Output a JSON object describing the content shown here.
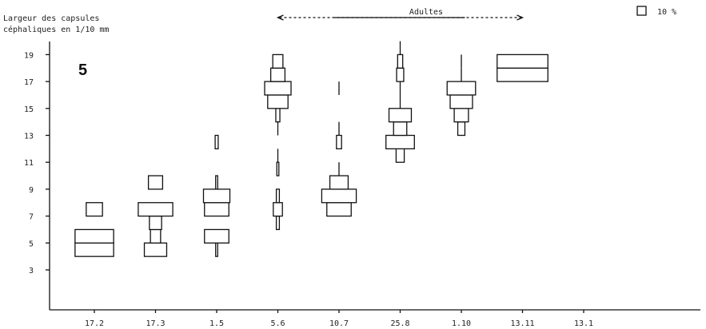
{
  "chart_data": {
    "type": "kite-diagram",
    "panel_label": "5",
    "ylabel_line1": "Largeur des capsules",
    "ylabel_line2": "céphaliques en 1/10 mm",
    "y_ticks": [
      3,
      5,
      7,
      9,
      11,
      13,
      15,
      17,
      19
    ],
    "ylim": [
      1,
      20.5
    ],
    "x_ticks": [
      "17.2",
      "17.3",
      "1.5",
      "5.6",
      "10.7",
      "25.8",
      "1.10",
      "13.11",
      "13.1"
    ],
    "range_annotation": {
      "label": "Adultes",
      "from": "5.6",
      "to": "13.11"
    },
    "legend": {
      "label": "10 %"
    },
    "samples": [
      {
        "date": "17.2",
        "bars": [
          {
            "size": 4.5,
            "percent": 38
          },
          {
            "size": 5.5,
            "percent": 38
          },
          {
            "size": 7.5,
            "percent": 16
          }
        ]
      },
      {
        "date": "17.3",
        "bars": [
          {
            "size": 4.5,
            "percent": 22
          },
          {
            "size": 5.5,
            "percent": 10
          },
          {
            "size": 6.5,
            "percent": 12
          },
          {
            "size": 7.5,
            "percent": 34
          },
          {
            "size": 9.5,
            "percent": 14
          }
        ]
      },
      {
        "date": "1.5",
        "bars": [
          {
            "size": 4.5,
            "percent": 2
          },
          {
            "size": 5.5,
            "percent": 24
          },
          {
            "size": 7.5,
            "percent": 24
          },
          {
            "size": 8.5,
            "percent": 26
          },
          {
            "size": 9.5,
            "percent": 2
          },
          {
            "size": 12.5,
            "percent": 3
          }
        ]
      },
      {
        "date": "5.6",
        "bars": [
          {
            "size": 6.5,
            "percent": 3
          },
          {
            "size": 7.5,
            "percent": 9
          },
          {
            "size": 8.5,
            "percent": 3
          },
          {
            "size": 10.5,
            "percent": 2
          },
          {
            "size": 11.5,
            "percent": 1
          },
          {
            "size": 13.5,
            "percent": 1
          },
          {
            "size": 14.5,
            "percent": 4
          },
          {
            "size": 15.5,
            "percent": 20
          },
          {
            "size": 16.5,
            "percent": 26
          },
          {
            "size": 17.5,
            "percent": 14
          },
          {
            "size": 18.5,
            "percent": 10
          }
        ]
      },
      {
        "date": "10.7",
        "bars": [
          {
            "size": 7.5,
            "percent": 24
          },
          {
            "size": 8.5,
            "percent": 34
          },
          {
            "size": 9.5,
            "percent": 18
          },
          {
            "size": 10.5,
            "percent": 1
          },
          {
            "size": 12.5,
            "percent": 5
          },
          {
            "size": 13.5,
            "percent": 1
          },
          {
            "size": 16.5,
            "percent": 1
          }
        ]
      },
      {
        "date": "25.8",
        "bars": [
          {
            "size": 11.5,
            "percent": 8
          },
          {
            "size": 12.5,
            "percent": 28
          },
          {
            "size": 13.5,
            "percent": 13
          },
          {
            "size": 14.5,
            "percent": 22
          },
          {
            "size": 15.5,
            "percent": 1
          },
          {
            "size": 16.5,
            "percent": 1
          },
          {
            "size": 17.5,
            "percent": 7
          },
          {
            "size": 18.5,
            "percent": 5
          },
          {
            "size": 19.5,
            "percent": 1
          }
        ]
      },
      {
        "date": "1.10",
        "bars": [
          {
            "size": 13.5,
            "percent": 7
          },
          {
            "size": 14.5,
            "percent": 14
          },
          {
            "size": 15.5,
            "percent": 22
          },
          {
            "size": 16.5,
            "percent": 28
          },
          {
            "size": 17.5,
            "percent": 1
          },
          {
            "size": 18.5,
            "percent": 1
          }
        ]
      },
      {
        "date": "13.11",
        "bars": [
          {
            "size": 17.5,
            "percent": 50
          },
          {
            "size": 18.5,
            "percent": 50
          }
        ]
      }
    ]
  }
}
